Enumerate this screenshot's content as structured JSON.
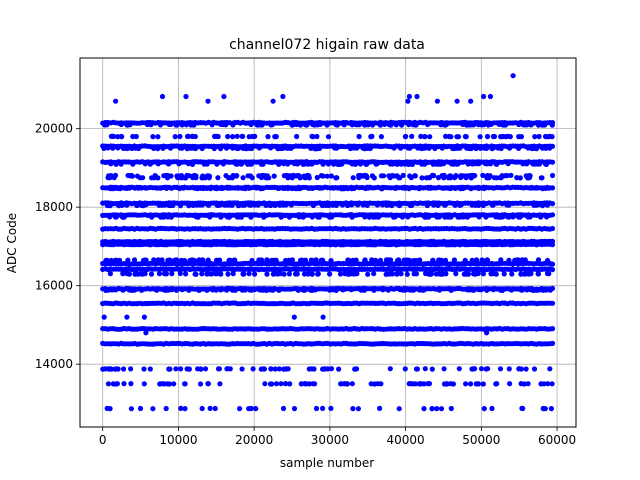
{
  "chart_data": {
    "type": "scatter",
    "title": "channel072 higain raw data",
    "xlabel": "sample number",
    "ylabel": "ADC Code",
    "xlim": [
      -3000,
      62500
    ],
    "ylim": [
      12400,
      21800
    ],
    "xticks": [
      0,
      10000,
      20000,
      30000,
      40000,
      50000,
      60000
    ],
    "yticks": [
      14000,
      16000,
      18000,
      20000
    ],
    "xtick_labels": [
      "0",
      "10000",
      "20000",
      "30000",
      "40000",
      "50000",
      "60000"
    ],
    "ytick_labels": [
      "14000",
      "16000",
      "18000",
      "20000"
    ],
    "grid": true,
    "marker_color": "#0000ff",
    "x_range": [
      0,
      59400
    ],
    "dense_levels": [
      14520,
      14900,
      15550,
      15920,
      16420,
      16560,
      17050,
      17120,
      17450,
      17800,
      18100,
      18500,
      19150,
      19550,
      20150
    ],
    "medium_levels": [
      15890,
      16300,
      16650,
      18050,
      18480,
      18800,
      19100,
      19500,
      20100
    ],
    "sparse_levels": [
      12870,
      13500,
      13880,
      17750,
      18750,
      19800
    ],
    "isolated_points": [
      {
        "x": 1700,
        "y": 20700
      },
      {
        "x": 7900,
        "y": 20820
      },
      {
        "x": 11000,
        "y": 20820
      },
      {
        "x": 13900,
        "y": 20700
      },
      {
        "x": 16000,
        "y": 20820
      },
      {
        "x": 22500,
        "y": 20700
      },
      {
        "x": 23800,
        "y": 20820
      },
      {
        "x": 40300,
        "y": 20700
      },
      {
        "x": 40500,
        "y": 20820
      },
      {
        "x": 41500,
        "y": 20820
      },
      {
        "x": 44200,
        "y": 20700
      },
      {
        "x": 46800,
        "y": 20700
      },
      {
        "x": 48600,
        "y": 20700
      },
      {
        "x": 50300,
        "y": 20820
      },
      {
        "x": 51200,
        "y": 20820
      },
      {
        "x": 54200,
        "y": 21350
      },
      {
        "x": 200,
        "y": 15200
      },
      {
        "x": 3200,
        "y": 15200
      },
      {
        "x": 5500,
        "y": 15200
      },
      {
        "x": 5700,
        "y": 14800
      },
      {
        "x": 25300,
        "y": 15200
      },
      {
        "x": 29100,
        "y": 15200
      },
      {
        "x": 50700,
        "y": 14800
      }
    ]
  }
}
